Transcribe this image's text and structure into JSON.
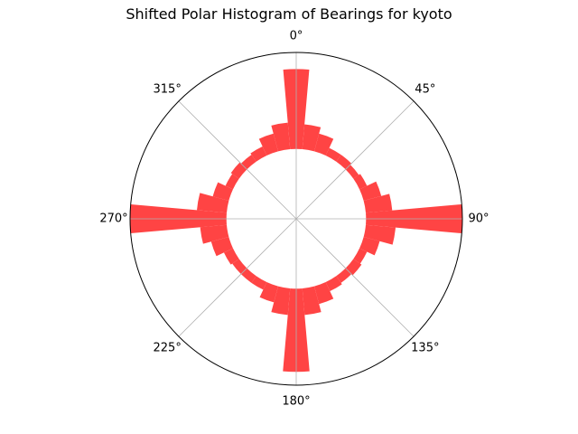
{
  "chart_data": {
    "type": "polar-bar",
    "title": "Shifted Polar Histogram of Bearings for kyoto",
    "bar_color": "#ff4040",
    "grid": true,
    "zero_location": "N",
    "direction": "clockwise",
    "bin_width_deg": 10,
    "bottom": 0.42,
    "rmax": 1.0,
    "theta_ticks": [
      "0°",
      "45°",
      "90°",
      "135°",
      "180°",
      "225°",
      "270°",
      "315°"
    ],
    "bins": [
      {
        "theta": 0,
        "r": 0.9
      },
      {
        "theta": 10,
        "r": 0.57
      },
      {
        "theta": 20,
        "r": 0.53
      },
      {
        "theta": 30,
        "r": 0.47
      },
      {
        "theta": 40,
        "r": 0.47
      },
      {
        "theta": 50,
        "r": 0.46
      },
      {
        "theta": 60,
        "r": 0.47
      },
      {
        "theta": 70,
        "r": 0.53
      },
      {
        "theta": 80,
        "r": 0.58
      },
      {
        "theta": 90,
        "r": 1.0
      },
      {
        "theta": 100,
        "r": 0.6
      },
      {
        "theta": 110,
        "r": 0.52
      },
      {
        "theta": 120,
        "r": 0.47
      },
      {
        "theta": 130,
        "r": 0.48
      },
      {
        "theta": 140,
        "r": 0.47
      },
      {
        "theta": 150,
        "r": 0.48
      },
      {
        "theta": 160,
        "r": 0.53
      },
      {
        "theta": 170,
        "r": 0.58
      },
      {
        "theta": 180,
        "r": 0.92
      },
      {
        "theta": 190,
        "r": 0.58
      },
      {
        "theta": 200,
        "r": 0.52
      },
      {
        "theta": 210,
        "r": 0.47
      },
      {
        "theta": 220,
        "r": 0.47
      },
      {
        "theta": 230,
        "r": 0.47
      },
      {
        "theta": 240,
        "r": 0.48
      },
      {
        "theta": 250,
        "r": 0.53
      },
      {
        "theta": 260,
        "r": 0.58
      },
      {
        "theta": 270,
        "r": 1.0
      },
      {
        "theta": 280,
        "r": 0.6
      },
      {
        "theta": 290,
        "r": 0.52
      },
      {
        "theta": 300,
        "r": 0.47
      },
      {
        "theta": 310,
        "r": 0.48
      },
      {
        "theta": 320,
        "r": 0.47
      },
      {
        "theta": 330,
        "r": 0.48
      },
      {
        "theta": 340,
        "r": 0.53
      },
      {
        "theta": 350,
        "r": 0.58
      }
    ]
  }
}
